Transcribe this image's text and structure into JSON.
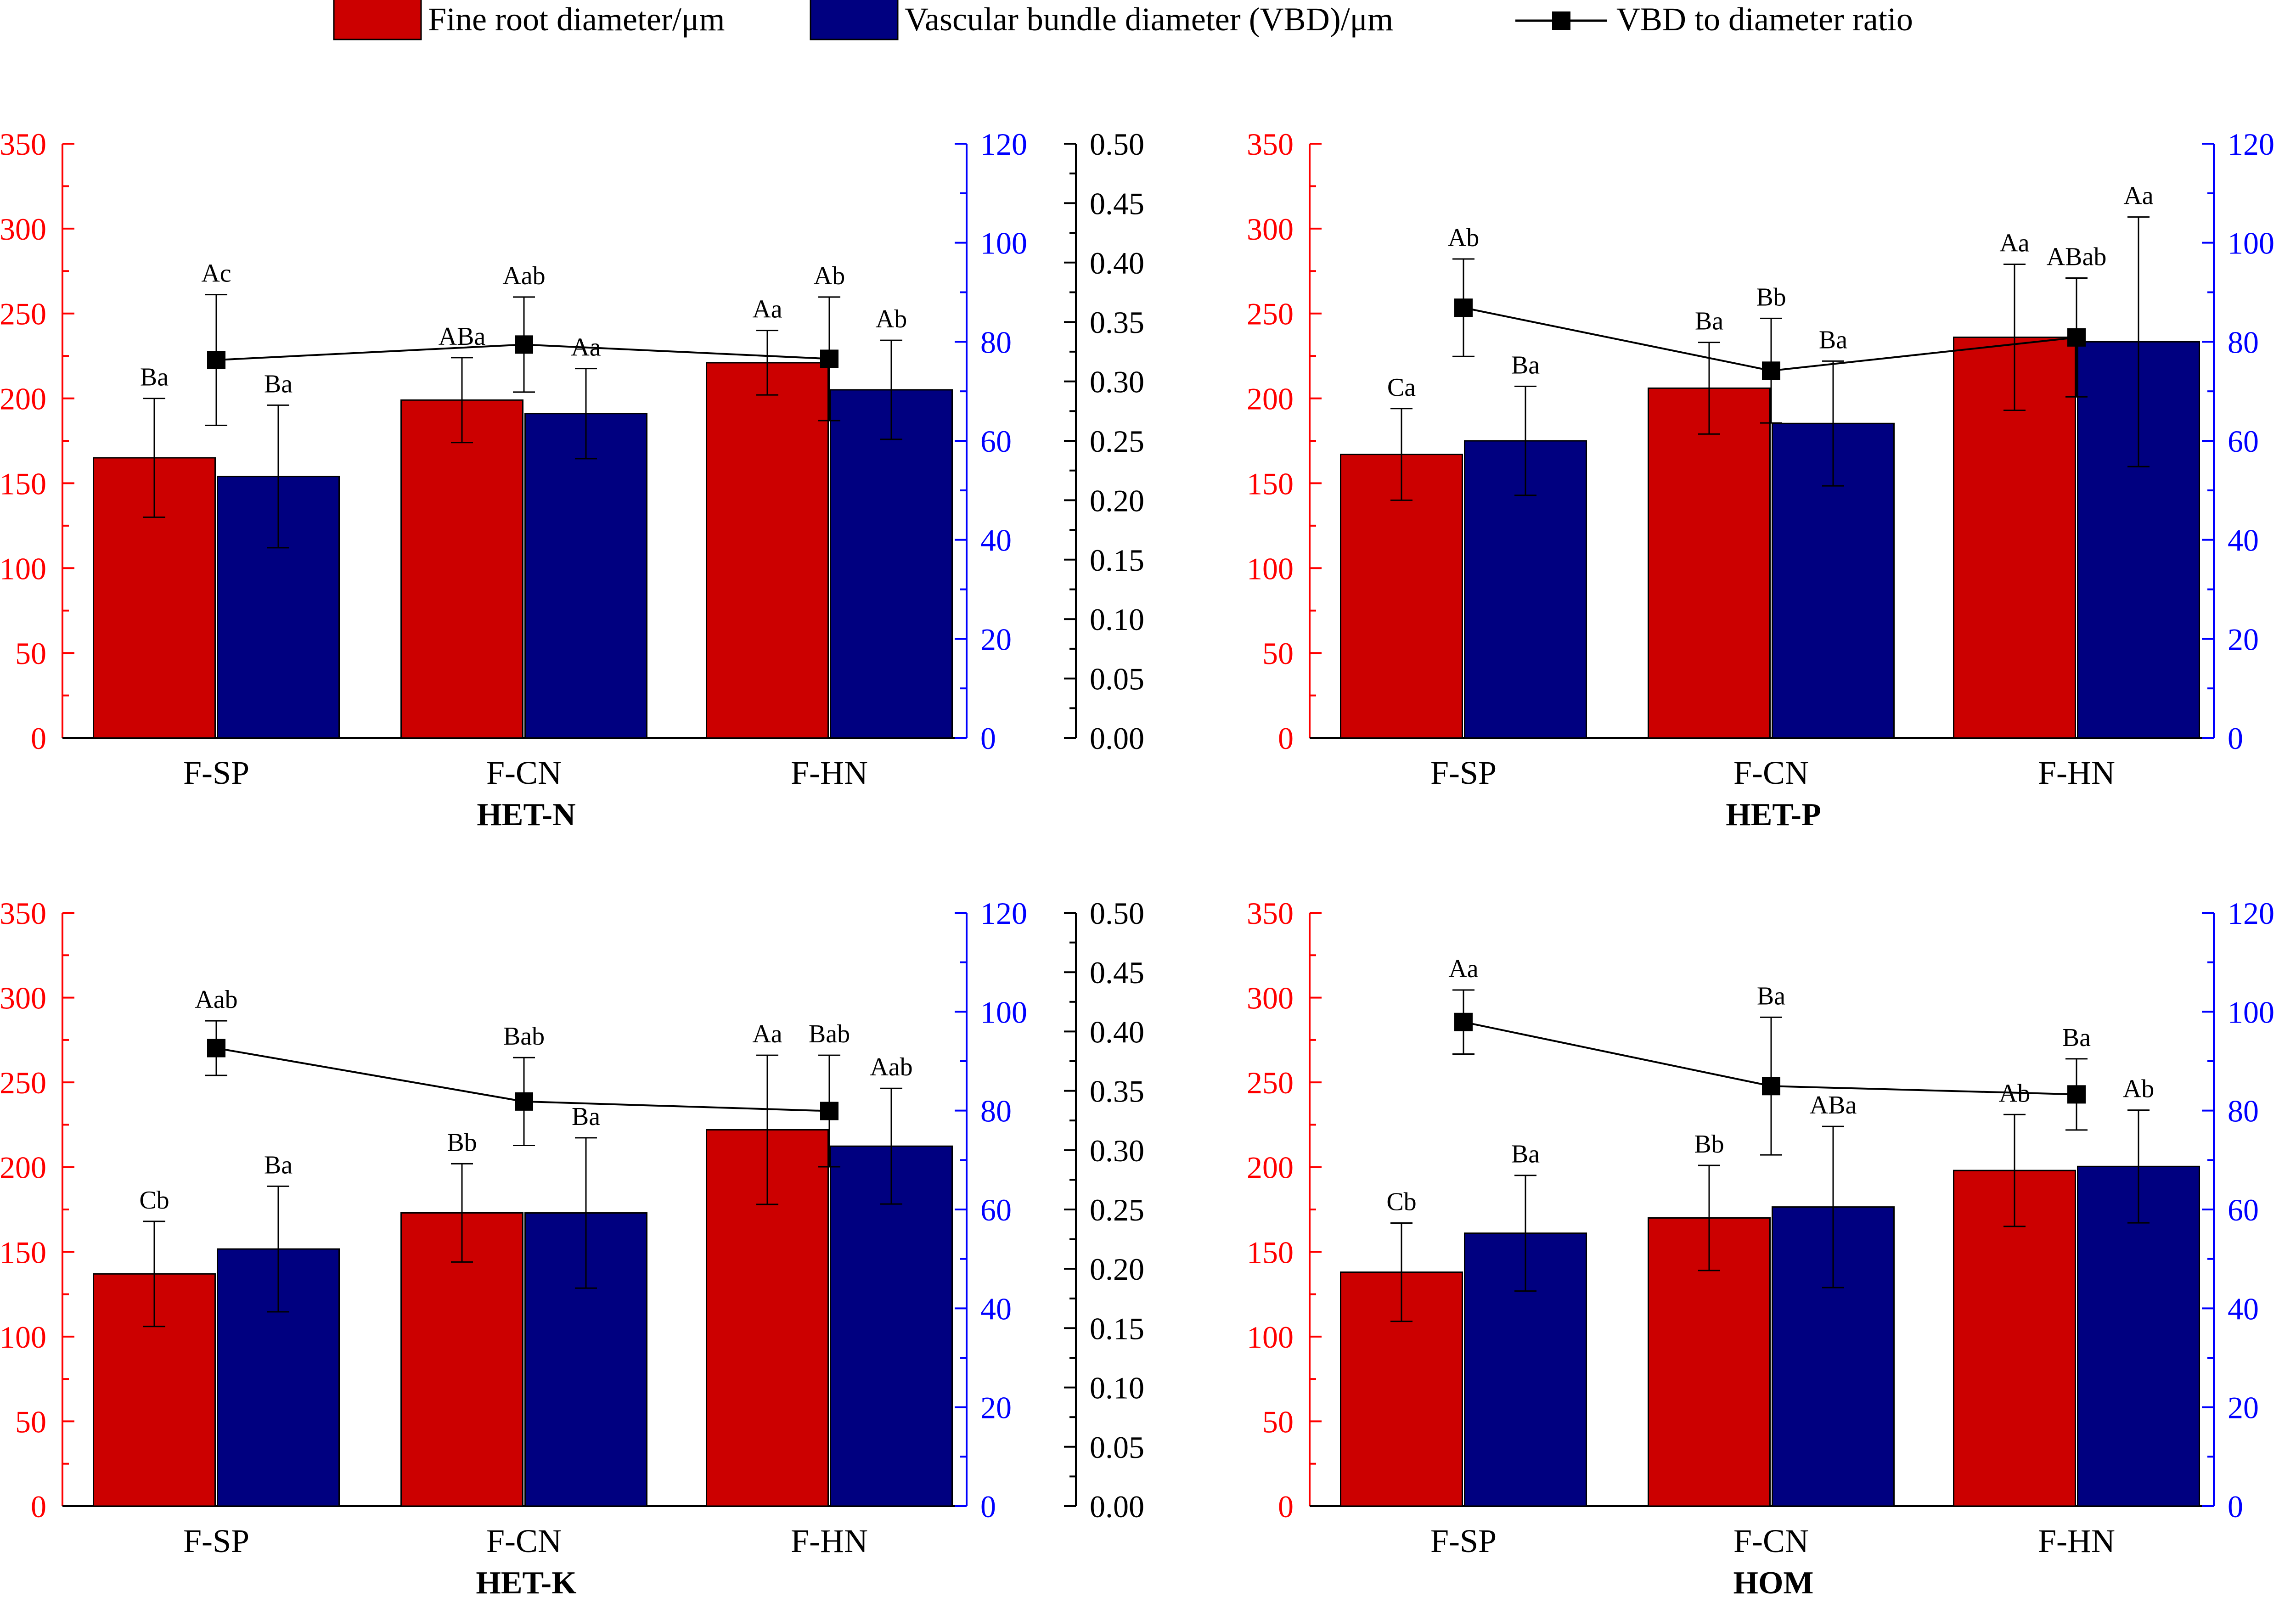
{
  "colors": {
    "fine_root": "#cc0000",
    "vbd": "#000080",
    "ratio": "#000000",
    "axis_left": "#ff0000",
    "axis_right1": "#0000ff",
    "axis_right2": "#000000"
  },
  "legend": {
    "fine_root": "Fine root diameter/μm",
    "vbd": "Vascular bundle diameter (VBD)/μm",
    "ratio": "VBD to diameter ratio"
  },
  "axes": {
    "left": {
      "ylim": [
        0,
        350
      ],
      "ticks": [
        "0",
        "50",
        "100",
        "150",
        "200",
        "250",
        "300",
        "350"
      ]
    },
    "right1": {
      "ylim": [
        0,
        120
      ],
      "ticks": [
        "0",
        "20",
        "40",
        "60",
        "80",
        "100",
        "120"
      ]
    },
    "right2": {
      "ylim": [
        0,
        0.5
      ],
      "ticks": [
        "0.00",
        "0.05",
        "0.10",
        "0.15",
        "0.20",
        "0.25",
        "0.30",
        "0.35",
        "0.40",
        "0.45",
        "0.50"
      ]
    }
  },
  "chart_data": [
    {
      "type": "bar",
      "title": "HET-N",
      "categories": [
        "F-SP",
        "F-CN",
        "F-HN"
      ],
      "series": [
        {
          "name": "Fine root diameter/μm",
          "axis": "left",
          "values": [
            165,
            199,
            221
          ],
          "errors": [
            35,
            25,
            19
          ],
          "labels": [
            "Ba",
            "ABa",
            "Aa"
          ]
        },
        {
          "name": "Vascular bundle diameter (VBD)/μm",
          "axis": "right1",
          "values": [
            52.8,
            65.5,
            70.3
          ],
          "errors": [
            14.4,
            9.1,
            10
          ],
          "labels": [
            "Ba",
            "Aa",
            "Ab"
          ]
        },
        {
          "name": "VBD to diameter ratio",
          "axis": "right2",
          "type": "line",
          "values": [
            0.318,
            0.331,
            0.319
          ],
          "errors": [
            0.055,
            0.04,
            0.052
          ],
          "labels": [
            "Ac",
            "Aab",
            "Ab"
          ]
        }
      ]
    },
    {
      "type": "bar",
      "title": "HET-P",
      "categories": [
        "F-SP",
        "F-CN",
        "F-HN"
      ],
      "series": [
        {
          "name": "Fine root diameter/μm",
          "axis": "left",
          "values": [
            167,
            206,
            236
          ],
          "errors": [
            27,
            27,
            43
          ],
          "labels": [
            "Ca",
            "Ba",
            "Aa"
          ]
        },
        {
          "name": "Vascular bundle diameter (VBD)/μm",
          "axis": "right1",
          "values": [
            60,
            63.5,
            80
          ],
          "errors": [
            11,
            12.6,
            25.2
          ],
          "labels": [
            "Ba",
            "Ba",
            "Aa"
          ]
        },
        {
          "name": "VBD to diameter ratio",
          "axis": "right2",
          "type": "line",
          "values": [
            0.362,
            0.309,
            0.337
          ],
          "errors": [
            0.041,
            0.044,
            0.05
          ],
          "labels": [
            "Ab",
            "Bb",
            "ABab"
          ]
        }
      ]
    },
    {
      "type": "bar",
      "title": "HET-K",
      "categories": [
        "F-SP",
        "F-CN",
        "F-HN"
      ],
      "series": [
        {
          "name": "Fine root diameter/μm",
          "axis": "left",
          "values": [
            137,
            173,
            222
          ],
          "errors": [
            31,
            29,
            44
          ],
          "labels": [
            "Cb",
            "Bb",
            "Aa"
          ]
        },
        {
          "name": "Vascular bundle diameter (VBD)/μm",
          "axis": "right1",
          "values": [
            52,
            59.3,
            72.8
          ],
          "errors": [
            12.7,
            15.2,
            11.7
          ],
          "labels": [
            "Ba",
            "Ba",
            "Aab"
          ]
        },
        {
          "name": "VBD to diameter ratio",
          "axis": "right2",
          "type": "line",
          "values": [
            0.386,
            0.341,
            0.333
          ],
          "errors": [
            0.023,
            0.037,
            0.047
          ],
          "labels": [
            "Aab",
            "Bab",
            "Bab"
          ]
        }
      ]
    },
    {
      "type": "bar",
      "title": "HOM",
      "categories": [
        "F-SP",
        "F-CN",
        "F-HN"
      ],
      "series": [
        {
          "name": "Fine root diameter/μm",
          "axis": "left",
          "values": [
            138,
            170,
            198
          ],
          "errors": [
            29,
            31,
            33
          ],
          "labels": [
            "Cb",
            "Bb",
            "Ab"
          ]
        },
        {
          "name": "Vascular bundle diameter (VBD)/μm",
          "axis": "right1",
          "values": [
            55.2,
            60.5,
            68.7
          ],
          "errors": [
            11.7,
            16.3,
            11.4
          ],
          "labels": [
            "Ba",
            "ABa",
            "Ab"
          ]
        },
        {
          "name": "VBD to diameter ratio",
          "axis": "right2",
          "type": "line",
          "values": [
            0.408,
            0.354,
            0.347
          ],
          "errors": [
            0.027,
            0.058,
            0.03
          ],
          "labels": [
            "Aa",
            "Ba",
            "Ba"
          ]
        }
      ]
    }
  ]
}
